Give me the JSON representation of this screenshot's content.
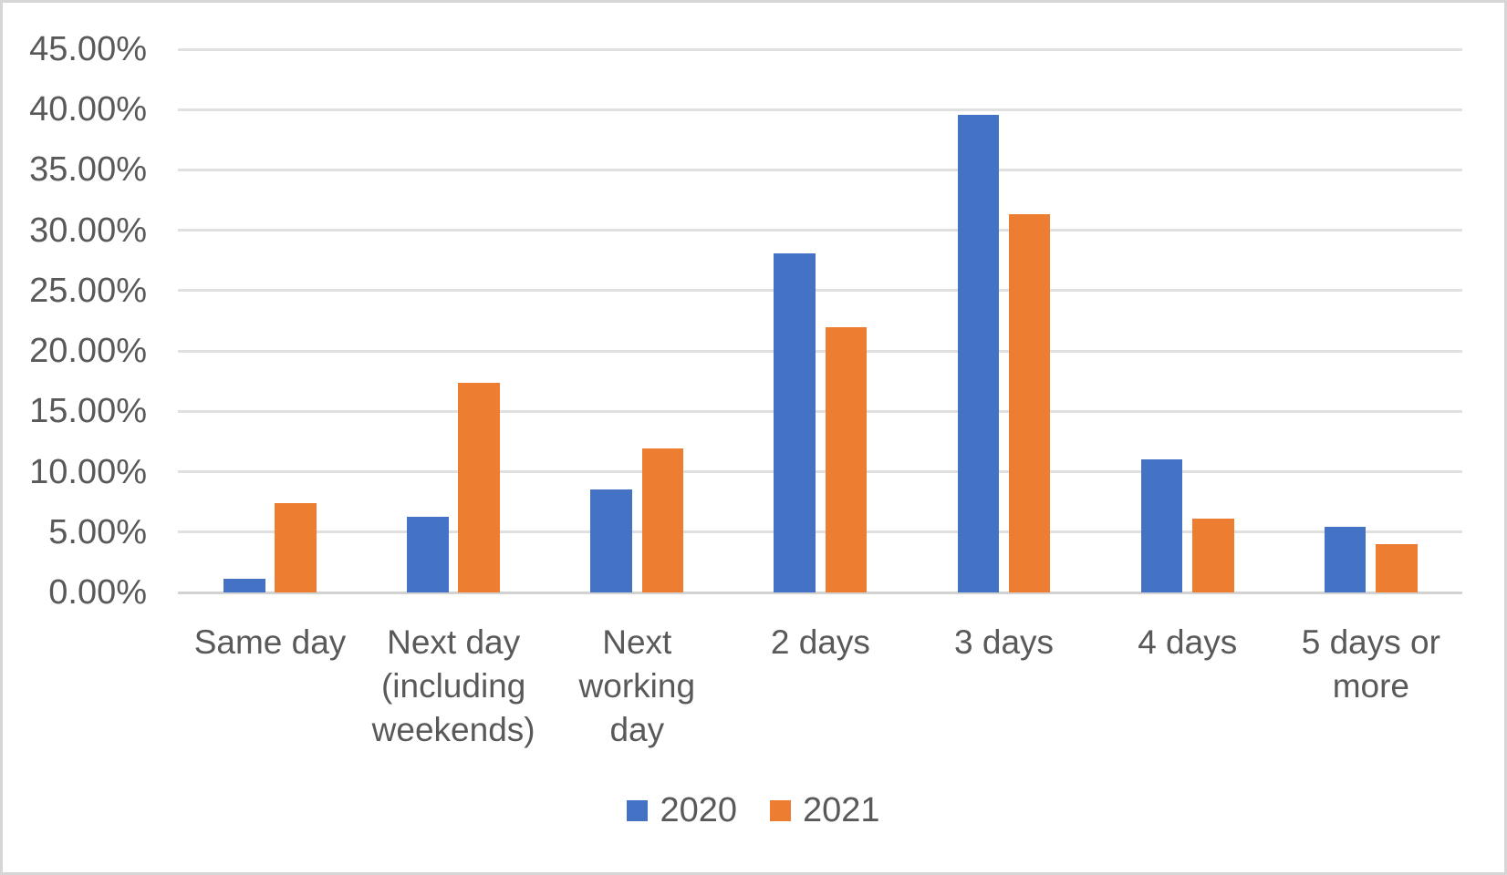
{
  "chart_data": {
    "type": "bar",
    "title": "",
    "xlabel": "",
    "ylabel": "",
    "categories": [
      "Same day",
      "Next day (including weekends)",
      "Next working day",
      "2 days",
      "3 days",
      "4 days",
      "5 days or more"
    ],
    "category_label_lines": [
      [
        "Same day"
      ],
      [
        "Next day",
        "(including",
        "weekends)"
      ],
      [
        "Next",
        "working",
        "day"
      ],
      [
        "2 days"
      ],
      [
        "3 days"
      ],
      [
        "4 days"
      ],
      [
        "5 days or",
        "more"
      ]
    ],
    "series": [
      {
        "name": "2020",
        "color": "#4472c4",
        "values": [
          1.1,
          6.3,
          8.5,
          28.1,
          39.6,
          11.0,
          5.4
        ]
      },
      {
        "name": "2021",
        "color": "#ed7d31",
        "values": [
          7.4,
          17.4,
          11.9,
          22.0,
          31.3,
          6.1,
          4.0
        ]
      }
    ],
    "ylim": [
      0,
      45
    ],
    "ytick_step": 5,
    "ytick_labels": [
      "45.00%",
      "40.00%",
      "35.00%",
      "30.00%",
      "25.00%",
      "20.00%",
      "15.00%",
      "10.00%",
      "5.00%",
      "0.00%"
    ],
    "grid": true,
    "legend_position": "bottom",
    "axis_text_color": "#595959",
    "gridline_color": "#e0e0e0"
  }
}
